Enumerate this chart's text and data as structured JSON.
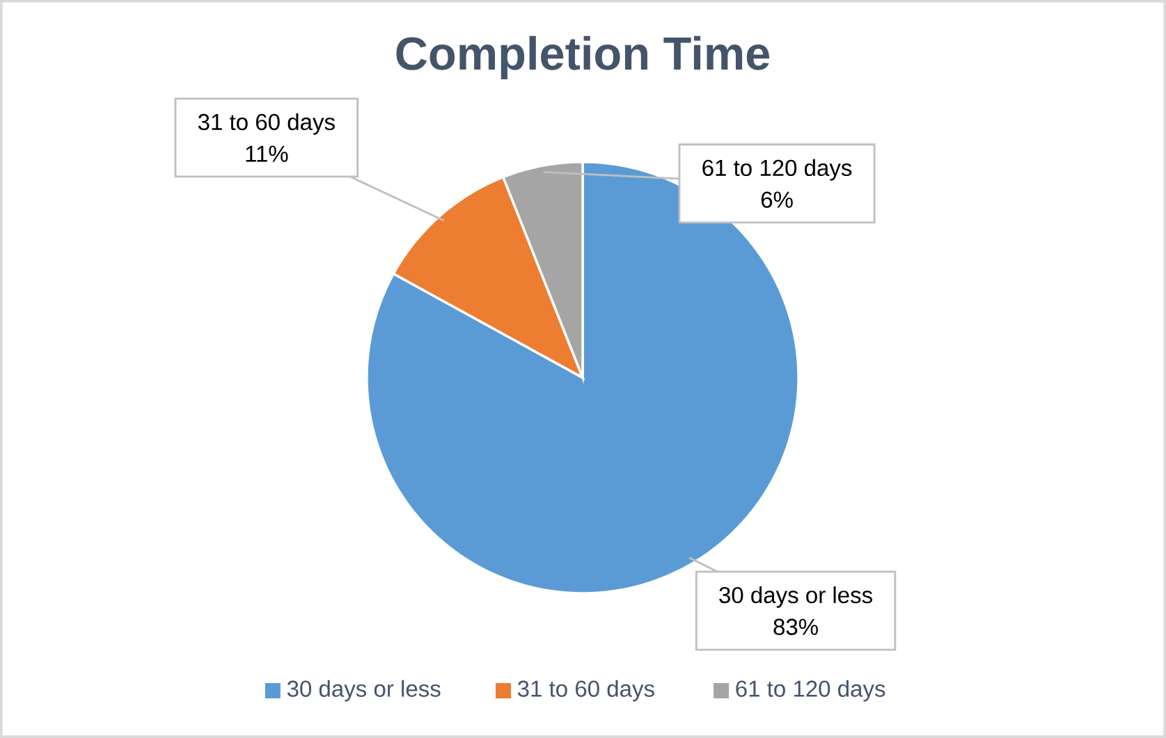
{
  "chart_data": {
    "type": "pie",
    "title": "Completion Time",
    "categories": [
      "30 days or less",
      "31 to 60 days",
      "61 to 120 days"
    ],
    "values": [
      83,
      11,
      6
    ],
    "value_labels": [
      "83%",
      "11%",
      "6%"
    ],
    "colors": [
      "#5b9bd5",
      "#ed7d31",
      "#a5a5a5"
    ],
    "legend": "bottom"
  }
}
